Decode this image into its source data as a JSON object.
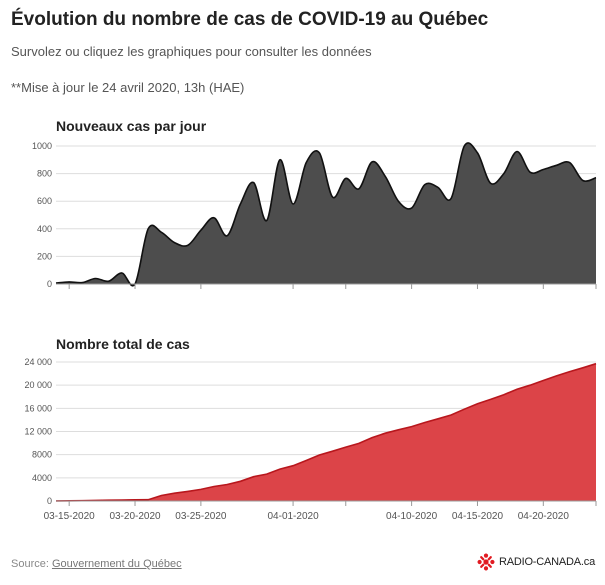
{
  "header": {
    "title": "Évolution du nombre de cas de COVID-19 au Québec",
    "subtitle": "Survolez ou cliquez les graphiques pour consulter les données",
    "update_note": "**Mise à jour le 24 avril 2020, 13h (HAE)"
  },
  "footer": {
    "source_prefix": "Source: ",
    "source_link": "Gouvernement du Québec",
    "brand": "RADIO-CANADA.ca",
    "brand_icon": "radio-canada-logo-icon"
  },
  "colors": {
    "daily_fill": "#4d4d4d",
    "daily_line": "#111111",
    "total_fill": "#dc4448",
    "total_line": "#b8171d",
    "grid": "#dddddd",
    "brand_red": "#e11b22"
  },
  "chart_data": [
    {
      "type": "area",
      "title": "Nouveaux cas par jour",
      "xlabel": "",
      "ylabel": "",
      "x": [
        "03-14",
        "03-15",
        "03-16",
        "03-17",
        "03-18",
        "03-19",
        "03-20",
        "03-21",
        "03-22",
        "03-23",
        "03-24",
        "03-25",
        "03-26",
        "03-27",
        "03-28",
        "03-29",
        "03-30",
        "03-31",
        "04-01",
        "04-02",
        "04-03",
        "04-04",
        "04-05",
        "04-06",
        "04-07",
        "04-08",
        "04-09",
        "04-10",
        "04-11",
        "04-12",
        "04-13",
        "04-14",
        "04-15",
        "04-16",
        "04-17",
        "04-18",
        "04-19",
        "04-20",
        "04-21",
        "04-22",
        "04-23",
        "04-24"
      ],
      "values": [
        7,
        15,
        10,
        40,
        20,
        80,
        0,
        400,
        375,
        300,
        280,
        390,
        480,
        350,
        580,
        735,
        460,
        900,
        580,
        880,
        950,
        630,
        765,
        690,
        885,
        780,
        600,
        550,
        720,
        700,
        620,
        1000,
        950,
        730,
        800,
        960,
        810,
        830,
        860,
        880,
        750,
        770
      ],
      "ylim": [
        0,
        1000
      ],
      "yticks": [
        "0",
        "200",
        "400",
        "600",
        "800",
        "1000"
      ],
      "grid": true,
      "legend": "none"
    },
    {
      "type": "area",
      "title": "Nombre total de cas",
      "xlabel": "",
      "ylabel": "",
      "x": [
        "03-14",
        "03-15",
        "03-16",
        "03-17",
        "03-18",
        "03-19",
        "03-20",
        "03-21",
        "03-22",
        "03-23",
        "03-24",
        "03-25",
        "03-26",
        "03-27",
        "03-28",
        "03-29",
        "03-30",
        "03-31",
        "04-01",
        "04-02",
        "04-03",
        "04-04",
        "04-05",
        "04-06",
        "04-07",
        "04-08",
        "04-09",
        "04-10",
        "04-11",
        "04-12",
        "04-13",
        "04-14",
        "04-15",
        "04-16",
        "04-17",
        "04-18",
        "04-19",
        "04-20",
        "04-21",
        "04-22",
        "04-23",
        "04-24"
      ],
      "values": [
        20,
        40,
        60,
        100,
        130,
        180,
        200,
        220,
        950,
        1350,
        1650,
        2000,
        2500,
        2850,
        3400,
        4200,
        4650,
        5500,
        6100,
        7000,
        7950,
        8600,
        9300,
        9950,
        10950,
        11700,
        12300,
        12850,
        13550,
        14200,
        14850,
        15850,
        16800,
        17550,
        18350,
        19300,
        20000,
        20800,
        21600,
        22350,
        23000,
        23700
      ],
      "ylim": [
        0,
        24000
      ],
      "yticks": [
        "0",
        "4000",
        "8000",
        "12 000",
        "16 000",
        "20 000",
        "24 000"
      ],
      "xticks": [
        "03-15-2020",
        "03-20-2020",
        "03-25-2020",
        "04-01-2020",
        "04-10-2020",
        "04-15-2020",
        "04-20-2020"
      ],
      "xtick_dates": [
        "03-15",
        "03-20",
        "03-25",
        "04-01",
        "04-10",
        "04-15",
        "04-20"
      ],
      "grid": true,
      "legend": "none"
    }
  ]
}
